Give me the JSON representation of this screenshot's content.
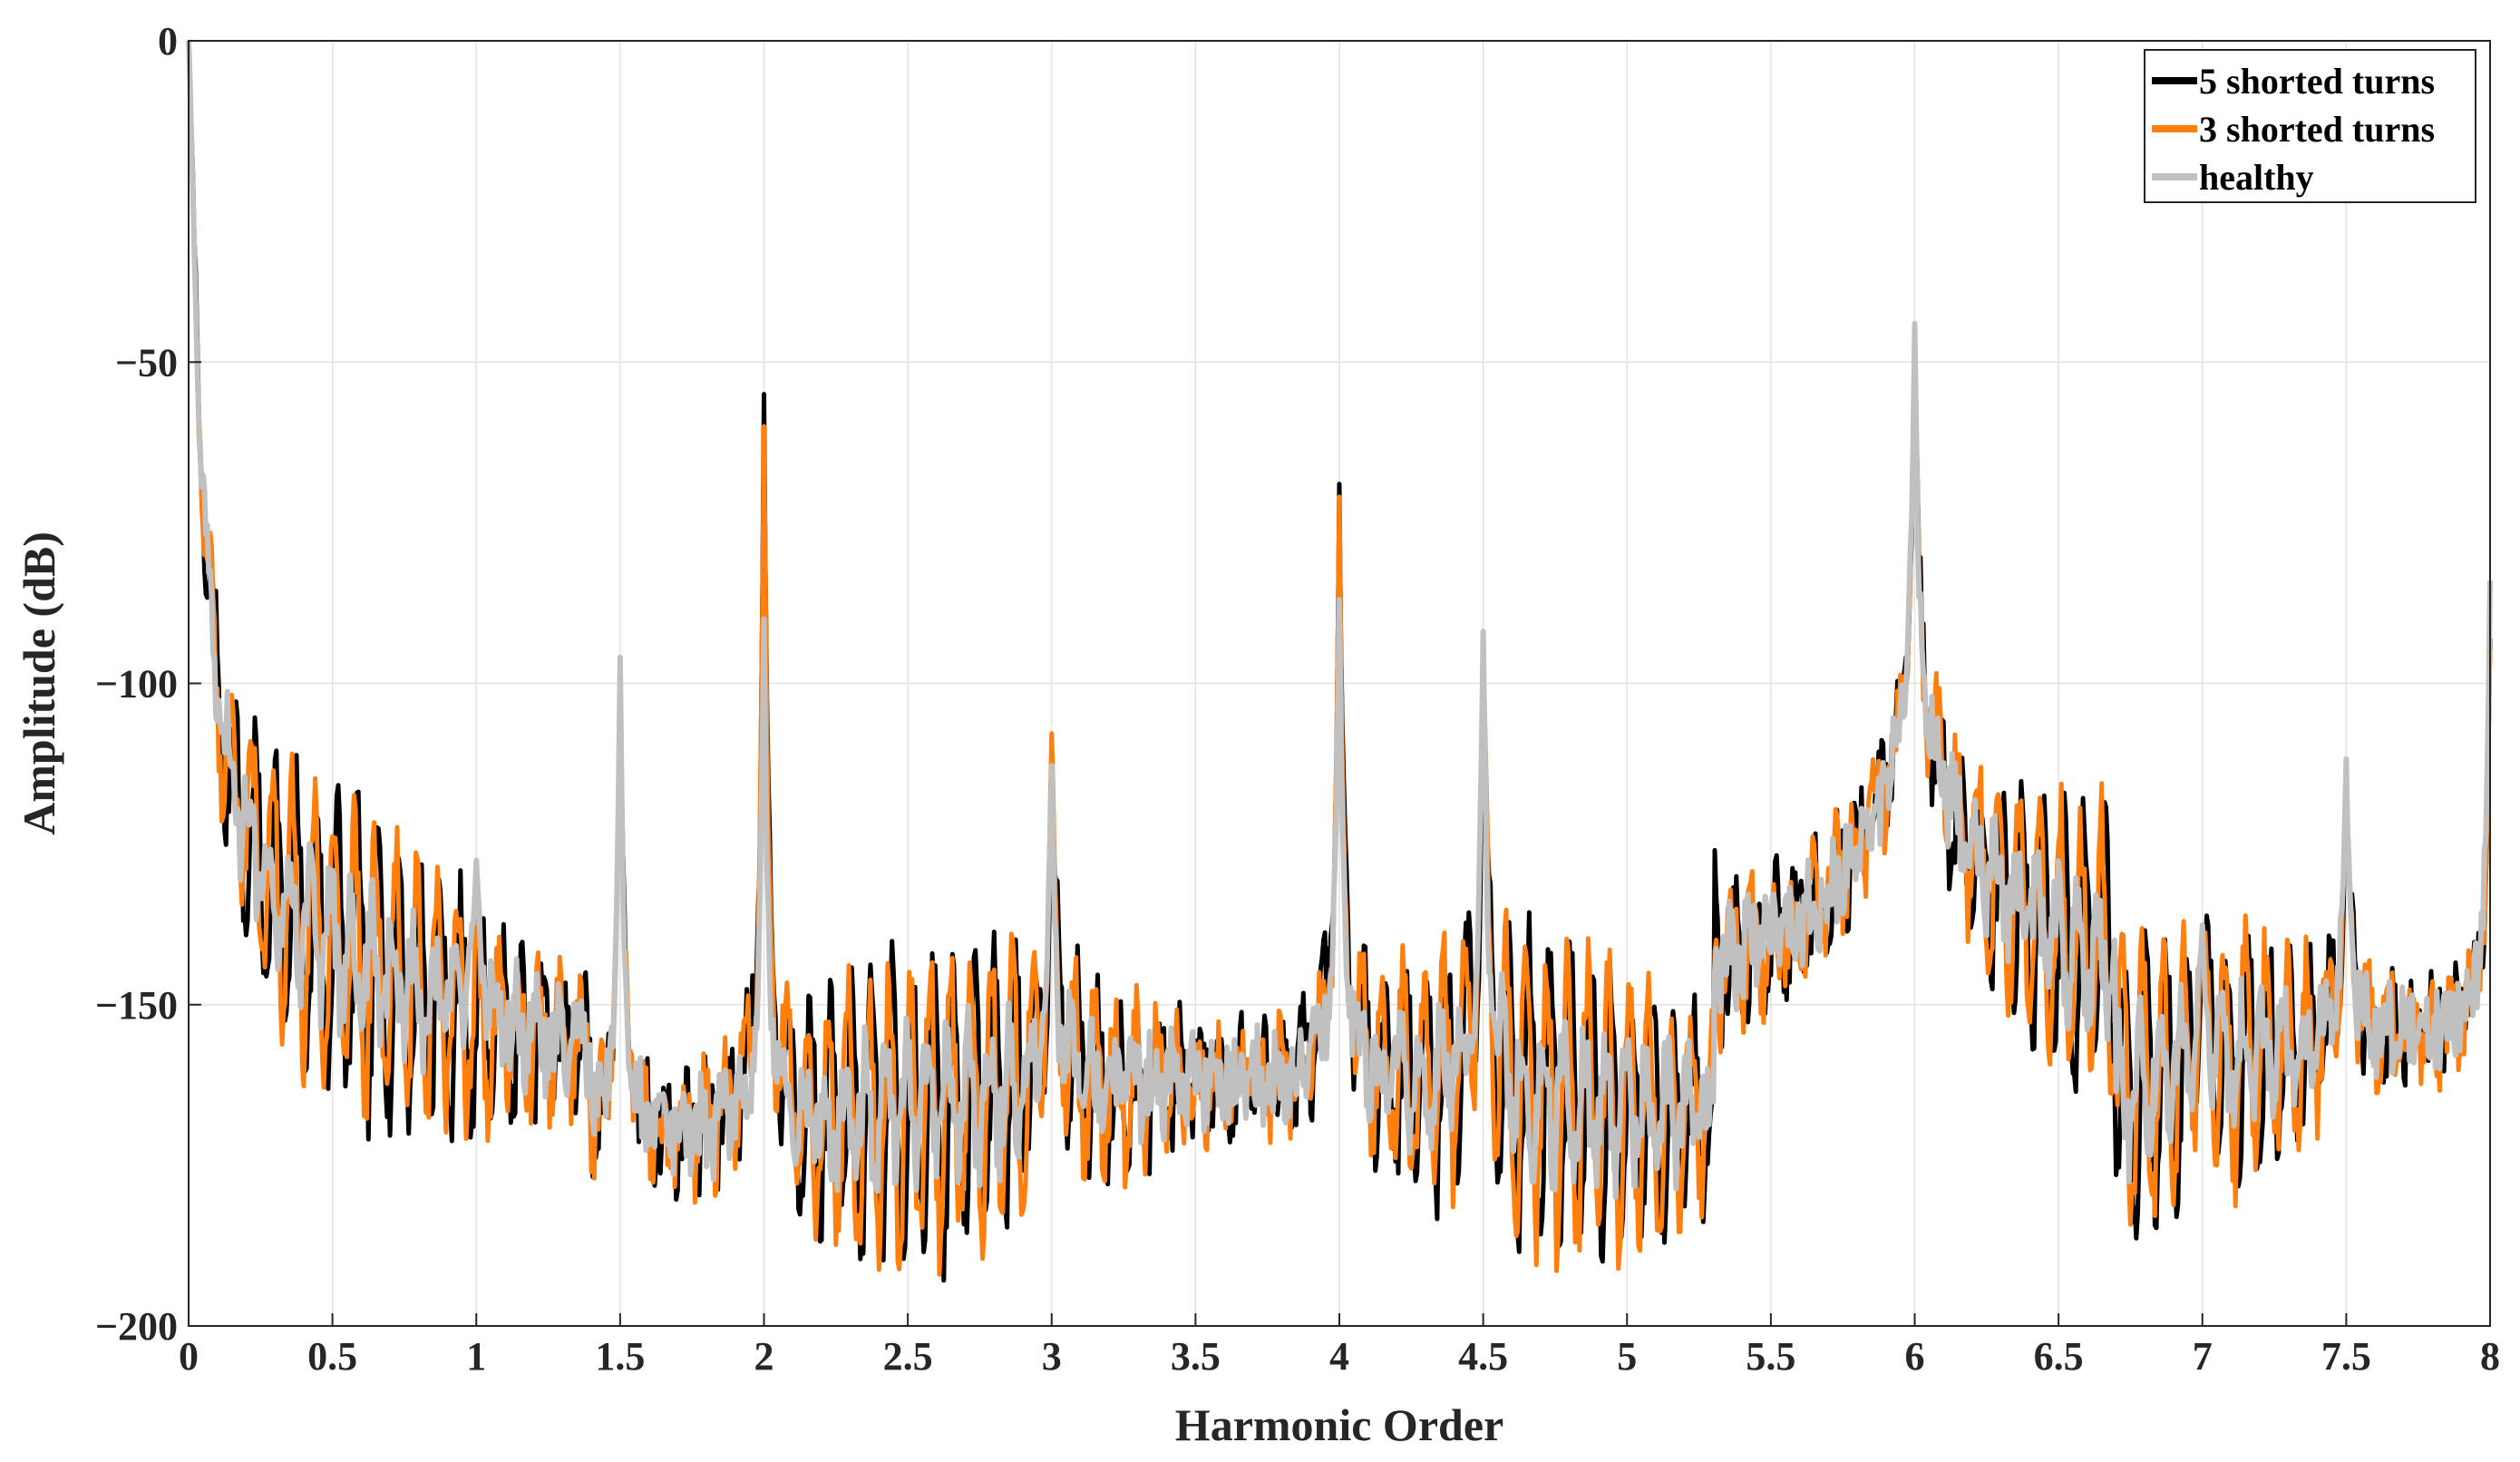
{
  "chart_data": {
    "type": "line",
    "title": "",
    "xlabel": "Harmonic Order",
    "ylabel": "Amplitude (dB)",
    "xlim": [
      0,
      8
    ],
    "ylim": [
      -200,
      0
    ],
    "xticks": [
      "0",
      "0.5",
      "1",
      "1.5",
      "2",
      "2.5",
      "3",
      "3.5",
      "4",
      "4.5",
      "5",
      "5.5",
      "6",
      "6.5",
      "7",
      "7.5",
      "8"
    ],
    "yticks": [
      "0",
      "−50",
      "−100",
      "−150",
      "−200"
    ],
    "xtick_values": [
      0,
      0.5,
      1,
      1.5,
      2,
      2.5,
      3,
      3.5,
      4,
      4.5,
      5,
      5.5,
      6,
      6.5,
      7,
      7.5,
      8
    ],
    "ytick_values": [
      0,
      -50,
      -100,
      -150,
      -200
    ],
    "grid": true,
    "legend_position": "top-right",
    "series": [
      {
        "name": "5 shorted turns",
        "color": "#000000",
        "peaks": [
          [
            0,
            0
          ],
          [
            1.5,
            -97
          ],
          [
            2,
            -55
          ],
          [
            3,
            -109
          ],
          [
            4,
            -69
          ],
          [
            4.5,
            -93
          ],
          [
            6,
            -44
          ],
          [
            7,
            -138
          ],
          [
            7.5,
            -112
          ],
          [
            8,
            -93
          ]
        ]
      },
      {
        "name": "3 shorted turns",
        "color": "#ff7f0e",
        "peaks": [
          [
            0,
            0
          ],
          [
            1.5,
            -97
          ],
          [
            2,
            -60
          ],
          [
            3,
            -108
          ],
          [
            4,
            -71
          ],
          [
            4.5,
            -93
          ],
          [
            6,
            -44
          ],
          [
            7,
            -138
          ],
          [
            7.5,
            -112
          ],
          [
            8,
            -95
          ]
        ]
      },
      {
        "name": "healthy",
        "color": "#c0c0c0",
        "peaks": [
          [
            0,
            0
          ],
          [
            1,
            -128
          ],
          [
            1.5,
            -96
          ],
          [
            2,
            -90
          ],
          [
            3,
            -113
          ],
          [
            4,
            -87
          ],
          [
            4.5,
            -92
          ],
          [
            6,
            -44
          ],
          [
            7,
            -138
          ],
          [
            7.5,
            -112
          ],
          [
            8,
            -84
          ]
        ]
      }
    ]
  }
}
